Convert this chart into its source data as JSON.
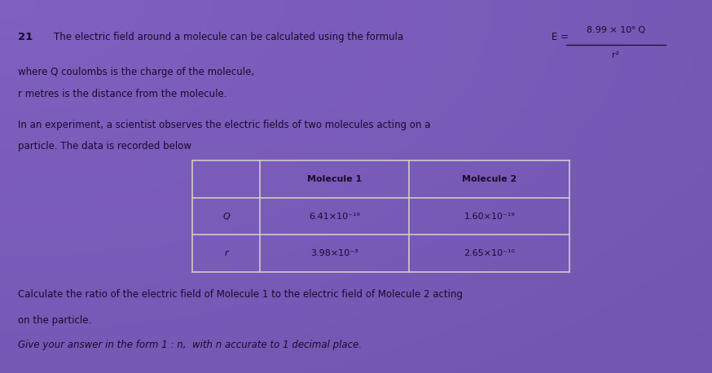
{
  "background_color": "#8060c0",
  "question_number": "21",
  "line1": "The electric field around a molecule can be calculated using the formula",
  "formula_E": "E =",
  "formula_numerator": "8.99 × 10⁹ Q",
  "formula_denominator": "r²",
  "where_line1": "where Q coulombs is the charge of the molecule,",
  "where_line2": "r metres is the distance from the molecule.",
  "experiment_line1": "In an experiment, a scientist observes the electric fields of two molecules acting on a",
  "experiment_line2": "particle. The data is recorded below",
  "table_header_col1": "Molecule 1",
  "table_header_col2": "Molecule 2",
  "table_row1_label": "Q",
  "table_row1_mol1": "6.41×10⁻¹⁹",
  "table_row1_mol2": "1.60×10⁻¹⁹",
  "table_row2_label": "r",
  "table_row2_mol1": "3.98×10⁻³",
  "table_row2_mol2": "2.65×10⁻¹⁰",
  "bottom_line1": "Calculate the ratio of the electric field of Molecule 1 to the electric field of Molecule 2 acting",
  "bottom_line2": "on the particle.",
  "bottom_line3": "Give your answer in the form 1 : n,  with n accurate to 1 decimal place.",
  "text_color_dark": "#1a0a2e",
  "text_color_mid": "#2a1040",
  "table_border": "#cccccc",
  "font_size_body": 8.5,
  "font_size_table": 8.0,
  "font_size_qnum": 9.5
}
